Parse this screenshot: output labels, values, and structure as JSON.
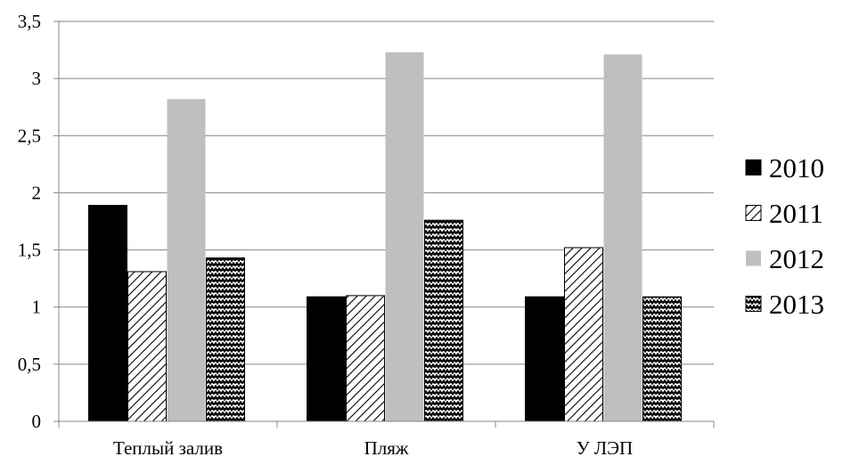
{
  "chart_data": {
    "type": "bar",
    "categories": [
      "Теплый залив",
      "Пляж",
      "У ЛЭП"
    ],
    "series": [
      {
        "name": "2010",
        "values": [
          1.89,
          1.09,
          1.09
        ],
        "fill": "solid-black"
      },
      {
        "name": "2011",
        "values": [
          1.31,
          1.1,
          1.52
        ],
        "fill": "diagonal-hatch"
      },
      {
        "name": "2012",
        "values": [
          2.82,
          3.23,
          3.21
        ],
        "fill": "solid-gray"
      },
      {
        "name": "2013",
        "values": [
          1.43,
          1.76,
          1.09
        ],
        "fill": "zigzag-pattern"
      }
    ],
    "yticks": [
      "0",
      "0,5",
      "1",
      "1,5",
      "2",
      "2,5",
      "3",
      "3,5"
    ],
    "ylim": [
      0,
      3.5
    ],
    "title": "",
    "xlabel": "",
    "ylabel": "",
    "grid": true,
    "legend_position": "right",
    "colors": {
      "solid": "#000000",
      "gray": "#bfbfbf",
      "grid": "#868686"
    }
  }
}
